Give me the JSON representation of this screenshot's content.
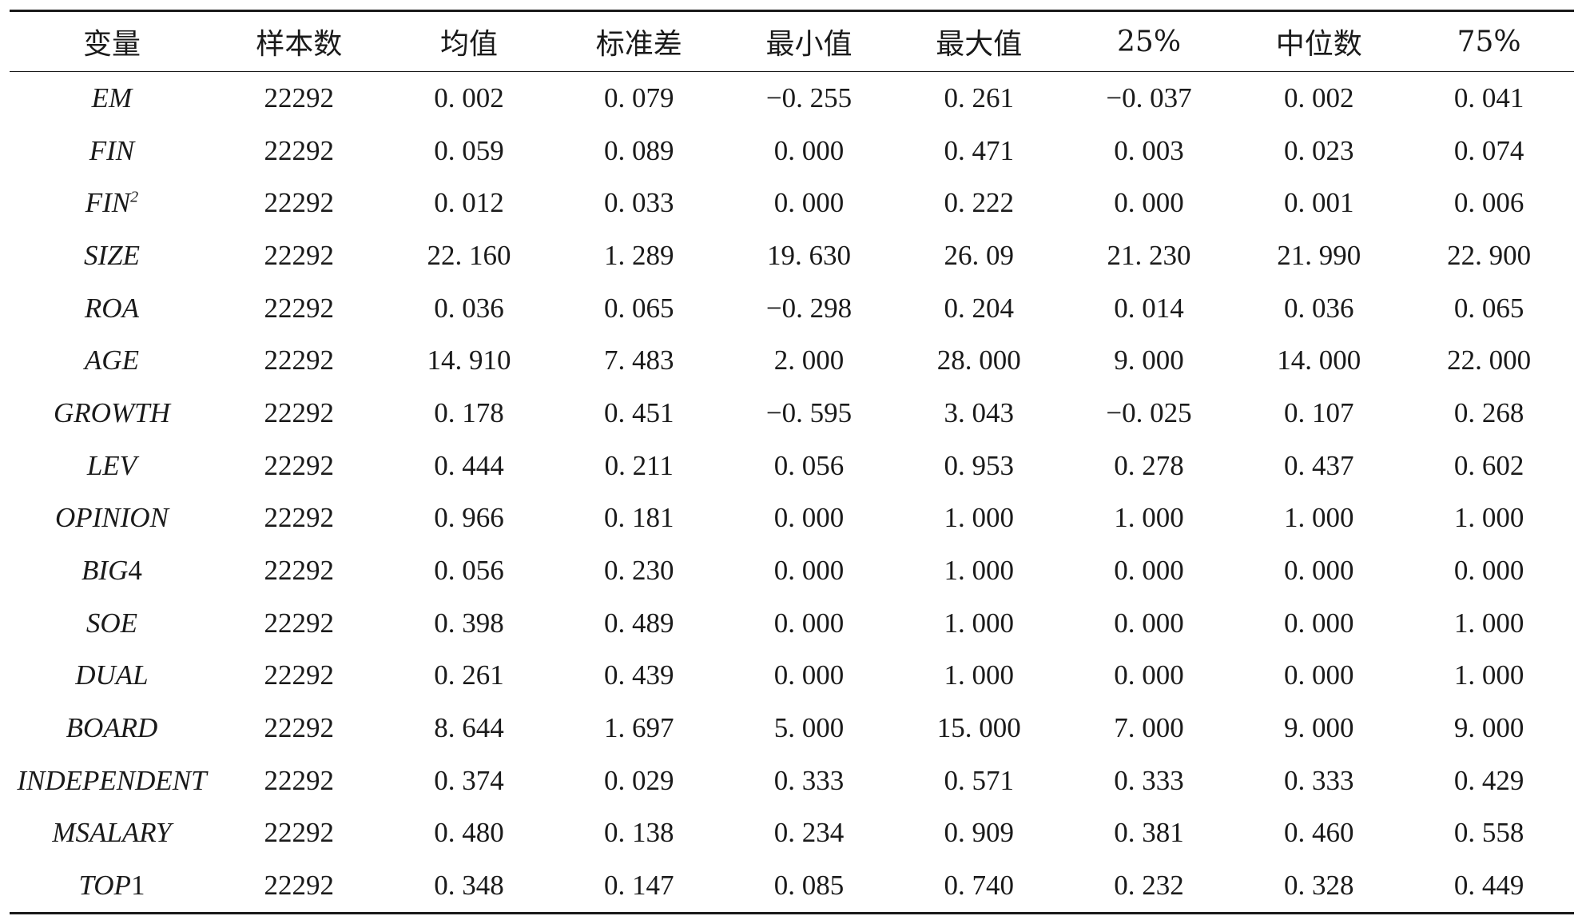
{
  "table": {
    "headers": [
      "变量",
      "样本数",
      "均值",
      "标准差",
      "最小值",
      "最大值",
      "25%",
      "中位数",
      "75%"
    ],
    "rows": [
      {
        "var": "EM",
        "var_plain": "",
        "var_sup": "",
        "cells": [
          "22292",
          "0. 002",
          "0. 079",
          "−0. 255",
          "0. 261",
          "−0. 037",
          "0. 002",
          "0. 041"
        ]
      },
      {
        "var": "FIN",
        "var_plain": "",
        "var_sup": "",
        "cells": [
          "22292",
          "0. 059",
          "0. 089",
          "0. 000",
          "0. 471",
          "0. 003",
          "0. 023",
          "0. 074"
        ]
      },
      {
        "var": "FIN",
        "var_plain": "",
        "var_sup": "2",
        "cells": [
          "22292",
          "0. 012",
          "0. 033",
          "0. 000",
          "0. 222",
          "0. 000",
          "0. 001",
          "0. 006"
        ]
      },
      {
        "var": "SIZE",
        "var_plain": "",
        "var_sup": "",
        "cells": [
          "22292",
          "22. 160",
          "1. 289",
          "19. 630",
          "26. 09",
          "21. 230",
          "21. 990",
          "22. 900"
        ]
      },
      {
        "var": "ROA",
        "var_plain": "",
        "var_sup": "",
        "cells": [
          "22292",
          "0. 036",
          "0. 065",
          "−0. 298",
          "0. 204",
          "0. 014",
          "0. 036",
          "0. 065"
        ]
      },
      {
        "var": "AGE",
        "var_plain": "",
        "var_sup": "",
        "cells": [
          "22292",
          "14. 910",
          "7. 483",
          "2. 000",
          "28. 000",
          "9. 000",
          "14. 000",
          "22. 000"
        ]
      },
      {
        "var": "GROWTH",
        "var_plain": "",
        "var_sup": "",
        "cells": [
          "22292",
          "0. 178",
          "0. 451",
          "−0. 595",
          "3. 043",
          "−0. 025",
          "0. 107",
          "0. 268"
        ]
      },
      {
        "var": "LEV",
        "var_plain": "",
        "var_sup": "",
        "cells": [
          "22292",
          "0. 444",
          "0. 211",
          "0. 056",
          "0. 953",
          "0. 278",
          "0. 437",
          "0. 602"
        ]
      },
      {
        "var": "OPINION",
        "var_plain": "",
        "var_sup": "",
        "cells": [
          "22292",
          "0. 966",
          "0. 181",
          "0. 000",
          "1. 000",
          "1. 000",
          "1. 000",
          "1. 000"
        ]
      },
      {
        "var": "BIG",
        "var_plain": "4",
        "var_sup": "",
        "cells": [
          "22292",
          "0. 056",
          "0. 230",
          "0. 000",
          "1. 000",
          "0. 000",
          "0. 000",
          "0. 000"
        ]
      },
      {
        "var": "SOE",
        "var_plain": "",
        "var_sup": "",
        "cells": [
          "22292",
          "0. 398",
          "0. 489",
          "0. 000",
          "1. 000",
          "0. 000",
          "0. 000",
          "1. 000"
        ]
      },
      {
        "var": "DUAL",
        "var_plain": "",
        "var_sup": "",
        "cells": [
          "22292",
          "0. 261",
          "0. 439",
          "0. 000",
          "1. 000",
          "0. 000",
          "0. 000",
          "1. 000"
        ]
      },
      {
        "var": "BOARD",
        "var_plain": "",
        "var_sup": "",
        "cells": [
          "22292",
          "8. 644",
          "1. 697",
          "5. 000",
          "15. 000",
          "7. 000",
          "9. 000",
          "9. 000"
        ]
      },
      {
        "var": "INDEPENDENT",
        "var_plain": "",
        "var_sup": "",
        "cells": [
          "22292",
          "0. 374",
          "0. 029",
          "0. 333",
          "0. 571",
          "0. 333",
          "0. 333",
          "0. 429"
        ]
      },
      {
        "var": "MSALARY",
        "var_plain": "",
        "var_sup": "",
        "cells": [
          "22292",
          "0. 480",
          "0. 138",
          "0. 234",
          "0. 909",
          "0. 381",
          "0. 460",
          "0. 558"
        ]
      },
      {
        "var": "TOP",
        "var_plain": "1",
        "var_sup": "",
        "cells": [
          "22292",
          "0. 348",
          "0. 147",
          "0. 085",
          "0. 740",
          "0. 232",
          "0. 328",
          "0. 449"
        ]
      }
    ]
  }
}
